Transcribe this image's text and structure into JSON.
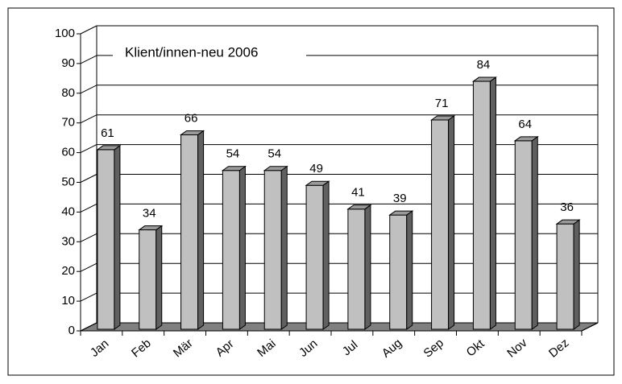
{
  "chart_data": {
    "type": "bar3d",
    "title": "Klient/innen-neu 2006",
    "categories": [
      "Jan",
      "Feb",
      "Mär",
      "Apr",
      "Mai",
      "Jun",
      "Jul",
      "Aug",
      "Sep",
      "Okt",
      "Nov",
      "Dez"
    ],
    "values": [
      61,
      34,
      66,
      54,
      54,
      49,
      41,
      39,
      71,
      84,
      64,
      36
    ],
    "color": "#c0c0c0",
    "ylim": [
      0,
      100
    ],
    "yticks": [
      0,
      10,
      20,
      30,
      40,
      50,
      60,
      70,
      80,
      90,
      100
    ],
    "grid": true
  }
}
